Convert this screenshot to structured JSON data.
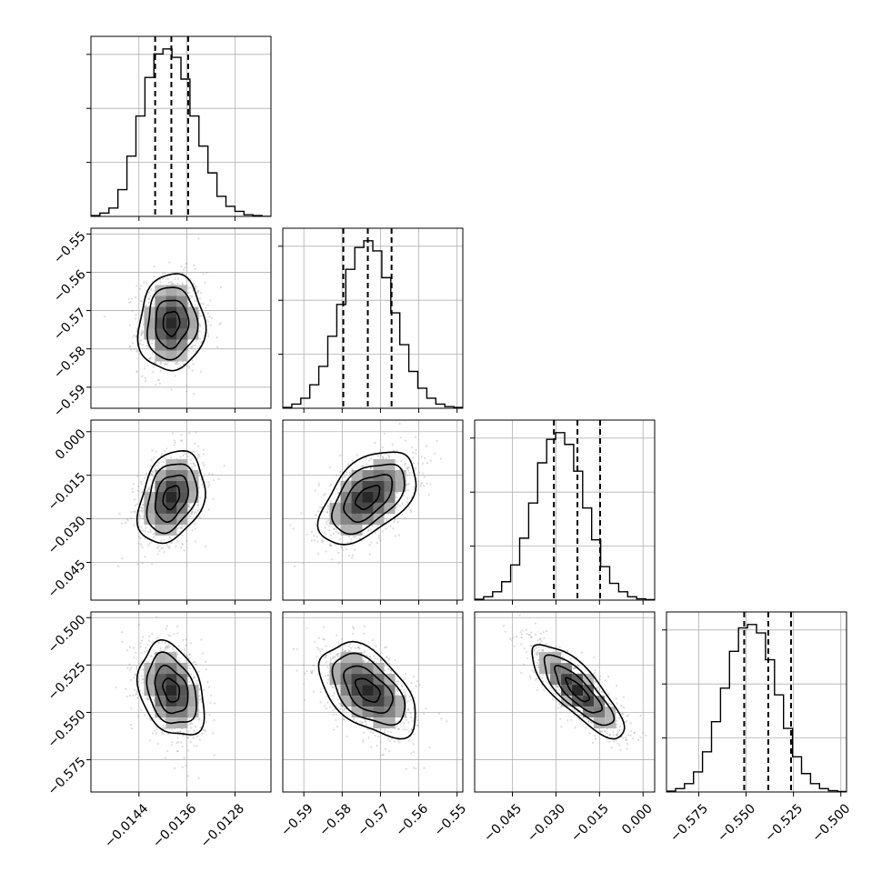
{
  "chart_data": {
    "type": "corner",
    "parameters": [
      {
        "range": [
          -0.0152,
          -0.0122
        ],
        "ticks": [
          -0.0144,
          -0.0136,
          -0.0128
        ],
        "tick_labels": [
          "−0.0144",
          "−0.0136",
          "−0.0128"
        ],
        "quantiles": [
          -0.01413,
          -0.01386,
          -0.01358
        ]
      },
      {
        "range": [
          -0.5955,
          -0.5485
        ],
        "ticks": [
          -0.59,
          -0.58,
          -0.57,
          -0.56,
          -0.55
        ],
        "tick_labels": [
          "−0.59",
          "−0.58",
          "−0.57",
          "−0.56",
          "−0.55"
        ],
        "quantiles": [
          -0.5797,
          -0.5733,
          -0.5671
        ]
      },
      {
        "range": [
          -0.058,
          0.004
        ],
        "ticks": [
          -0.045,
          -0.03,
          -0.015,
          0.0
        ],
        "tick_labels": [
          "−0.045",
          "−0.030",
          "−0.015",
          "0.000"
        ],
        "quantiles": [
          -0.0307,
          -0.0226,
          -0.0148
        ]
      },
      {
        "range": [
          -0.592,
          -0.497
        ],
        "ticks": [
          -0.575,
          -0.55,
          -0.525,
          -0.5
        ],
        "tick_labels": [
          "−0.575",
          "−0.550",
          "−0.525",
          "−0.500"
        ],
        "quantiles": [
          -0.551,
          -0.5383,
          -0.5263
        ]
      }
    ],
    "histograms": [
      {
        "edges_start": -0.0152,
        "bin_width": 0.00015,
        "counts": [
          0.005,
          0.02,
          0.05,
          0.16,
          0.36,
          0.6,
          0.83,
          0.97,
          1.0,
          0.95,
          0.82,
          0.6,
          0.42,
          0.26,
          0.12,
          0.06,
          0.03,
          0.01,
          0.005,
          0
        ]
      },
      {
        "edges_start": -0.5955,
        "bin_width": 0.00235,
        "counts": [
          0.005,
          0.025,
          0.06,
          0.14,
          0.25,
          0.43,
          0.62,
          0.83,
          0.96,
          1.0,
          0.94,
          0.78,
          0.57,
          0.38,
          0.22,
          0.12,
          0.06,
          0.025,
          0.01,
          0.005
        ]
      },
      {
        "edges_start": -0.058,
        "bin_width": 0.0031,
        "counts": [
          0.005,
          0.02,
          0.05,
          0.11,
          0.21,
          0.37,
          0.58,
          0.82,
          0.96,
          1.0,
          0.93,
          0.77,
          0.55,
          0.36,
          0.2,
          0.1,
          0.05,
          0.02,
          0.008,
          0.003
        ]
      },
      {
        "edges_start": -0.592,
        "bin_width": 0.00475,
        "counts": [
          0.005,
          0.02,
          0.05,
          0.12,
          0.24,
          0.42,
          0.62,
          0.84,
          0.98,
          1.0,
          0.95,
          0.79,
          0.58,
          0.38,
          0.21,
          0.11,
          0.05,
          0.02,
          0.008,
          0.003
        ]
      }
    ],
    "correlations": {
      "1-0": 0.05,
      "2-0": 0.3,
      "2-1": 0.5,
      "3-0": -0.3,
      "3-1": -0.5,
      "3-2": -0.8
    },
    "grid": true
  }
}
